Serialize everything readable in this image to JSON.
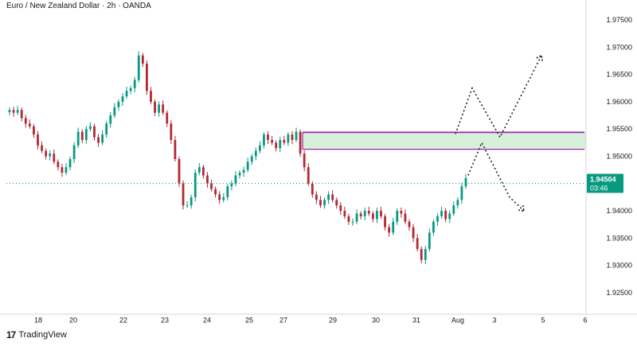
{
  "header": {
    "symbol_title": "Euro / New Zealand Dollar · 2h · OANDA"
  },
  "footer": {
    "brand": "TradingView"
  },
  "price_tag": {
    "price": "1.94504",
    "countdown": "03:46",
    "color": "#089981"
  },
  "colors": {
    "up": "#089981",
    "down": "#b22833",
    "zone_fill": "#d7f0da",
    "zone_border": "#9c27b0",
    "projection": "#222222"
  },
  "chart_data": {
    "type": "candlestick",
    "instrument": "EUR/NZD",
    "timeframe": "2h",
    "ylim": [
      1.9225,
      1.9775
    ],
    "y_ticks": [
      "1.97500",
      "1.97000",
      "1.96500",
      "1.96000",
      "1.95500",
      "1.95000",
      "1.94000",
      "1.93500",
      "1.93000",
      "1.92500"
    ],
    "x_ticks": [
      "18",
      "20",
      "22",
      "23",
      "24",
      "25",
      "27",
      "29",
      "30",
      "31",
      "Aug",
      "3",
      "5",
      "6"
    ],
    "last_price": 1.94504,
    "close_series": [
      1.9585,
      1.958,
      1.9585,
      1.957,
      1.956,
      1.9555,
      1.954,
      1.952,
      1.951,
      1.95,
      1.9505,
      1.949,
      1.948,
      1.947,
      1.948,
      1.9495,
      1.952,
      1.9545,
      1.953,
      1.955,
      1.9555,
      1.9535,
      1.9525,
      1.954,
      1.956,
      1.9575,
      1.959,
      1.96,
      1.961,
      1.962,
      1.9625,
      1.964,
      1.9685,
      1.967,
      1.962,
      1.96,
      1.958,
      1.9595,
      1.958,
      1.956,
      1.953,
      1.9495,
      1.945,
      1.941,
      1.941,
      1.9425,
      1.947,
      1.948,
      1.9465,
      1.945,
      1.944,
      1.943,
      1.942,
      1.9425,
      1.9445,
      1.945,
      1.9465,
      1.947,
      1.9475,
      1.949,
      1.95,
      1.951,
      1.952,
      1.954,
      1.953,
      1.9525,
      1.9515,
      1.953,
      1.9525,
      1.954,
      1.953,
      1.9545,
      1.9505,
      1.948,
      1.945,
      1.943,
      1.942,
      1.941,
      1.942,
      1.943,
      1.942,
      1.941,
      1.94,
      1.939,
      1.938,
      1.938,
      1.9395,
      1.939,
      1.94,
      1.9395,
      1.9385,
      1.94,
      1.939,
      1.937,
      1.936,
      1.938,
      1.94,
      1.9395,
      1.938,
      1.937,
      1.935,
      1.933,
      1.931,
      1.933,
      1.936,
      1.938,
      1.939,
      1.94,
      1.9385,
      1.9395,
      1.941,
      1.942,
      1.9445,
      1.946
    ],
    "zones": [
      {
        "type": "supply/demand",
        "from": 1.9513,
        "to": 1.9544
      }
    ],
    "projection_paths": [
      {
        "name": "bullish",
        "points": [
          [
            1.9541
          ],
          [
            1.9625
          ],
          [
            1.9535
          ],
          [
            1.9685
          ]
        ]
      },
      {
        "name": "bearish",
        "points": [
          [
            1.9465
          ],
          [
            1.9525
          ],
          [
            1.9425
          ],
          [
            1.94
          ]
        ]
      }
    ],
    "grid": false,
    "legend": "none"
  }
}
